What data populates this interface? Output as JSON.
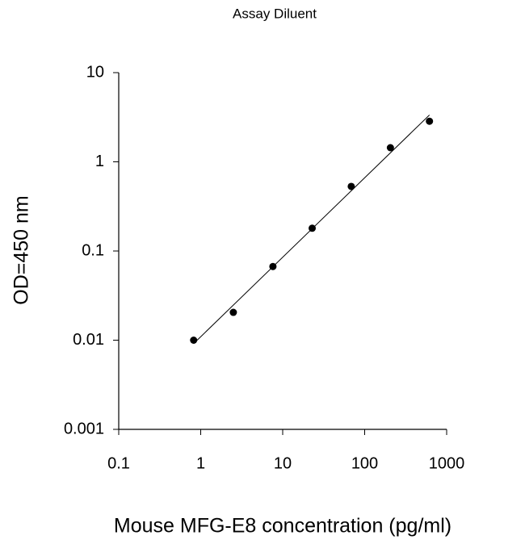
{
  "chart_data": {
    "type": "scatter",
    "title": "Assay Diluent",
    "x_label": "Mouse MFG-E8 concentration (pg/ml)",
    "y_label": "OD=450 nm",
    "x": [
      0.82,
      2.5,
      7.6,
      22.9,
      68.6,
      206,
      617
    ],
    "values": [
      0.01,
      0.0205,
      0.067,
      0.18,
      0.53,
      1.44,
      2.85
    ],
    "color": "#000000",
    "x_log": true,
    "y_log": true,
    "fit_line": true,
    "xlim": [
      0.1,
      1000
    ],
    "ylim": [
      0.001,
      10
    ],
    "xticks": [
      0.1,
      1,
      10,
      100,
      1000
    ],
    "yticks": [
      0.001,
      0.01,
      0.1,
      1,
      10
    ]
  }
}
